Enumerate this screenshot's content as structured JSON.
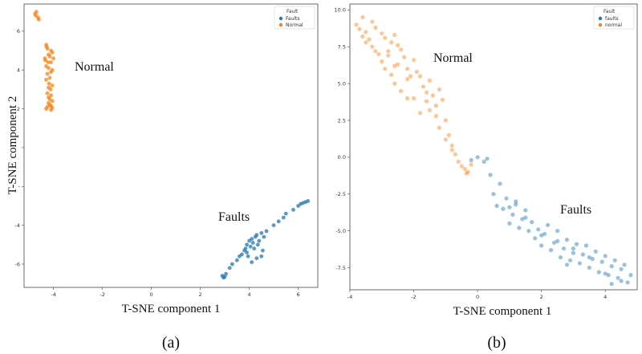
{
  "colors": {
    "faults": "#1f77b4",
    "normal": "#ff7f0e",
    "frame": "#444444"
  },
  "chart_data": [
    {
      "type": "scatter",
      "caption": "(a)",
      "xlabel": "T-SNE component 1",
      "ylabel": "T-SNE component 2",
      "xlim": [
        -5.2,
        6.8
      ],
      "ylim": [
        -7.2,
        7.4
      ],
      "xticks": [
        -4,
        -2,
        0,
        2,
        4,
        6
      ],
      "yticks": [
        -6,
        -4,
        -2,
        0,
        2,
        4,
        6
      ],
      "ytick_labels": [
        "-6",
        "-4",
        "-",
        "",
        "2",
        "4",
        "6"
      ],
      "legend": {
        "title": "Fault",
        "entries": [
          "Faults",
          "Normal"
        ],
        "location": "top-right"
      },
      "annotations": [
        {
          "text": "Normal",
          "x": -3.4,
          "y": 4.2
        },
        {
          "text": "Faults",
          "x": 1.7,
          "y": -3.5
        }
      ],
      "series": [
        {
          "name": "Normal",
          "x": [
            -4.75,
            -4.7,
            -4.72,
            -4.63,
            -4.6,
            -4.3,
            -4.28,
            -4.25,
            -4.1,
            -4.05,
            -4.2,
            -4.15,
            -4.0,
            -4.35,
            -4.33,
            -4.22,
            -4.1,
            -4.3,
            -4.2,
            -4.05,
            -4.1,
            -4.25,
            -4.15,
            -4.3,
            -4.18,
            -4.05,
            -4.2,
            -4.12,
            -4.25,
            -4.1,
            -4.2,
            -4.15,
            -4.05,
            -4.2,
            -4.15,
            -4.1,
            -4.25,
            -4.05,
            -4.3,
            -4.1
          ],
          "y": [
            6.9,
            7.0,
            6.8,
            6.7,
            6.6,
            5.3,
            5.2,
            5.1,
            5.0,
            4.9,
            4.8,
            4.7,
            4.6,
            4.6,
            4.5,
            4.4,
            4.4,
            4.2,
            4.1,
            4.0,
            3.9,
            3.8,
            3.6,
            3.5,
            3.3,
            3.2,
            3.1,
            3.0,
            2.8,
            2.7,
            2.6,
            2.5,
            2.4,
            2.3,
            2.2,
            2.15,
            2.1,
            2.05,
            2.0,
            1.95
          ]
        },
        {
          "name": "Faults",
          "x": [
            2.9,
            2.95,
            3.0,
            3.05,
            3.2,
            3.3,
            3.5,
            3.6,
            3.7,
            3.8,
            3.85,
            3.9,
            4.0,
            4.05,
            4.1,
            4.15,
            4.2,
            4.25,
            4.3,
            4.35,
            4.4,
            4.5,
            4.55,
            4.6,
            4.7,
            4.5,
            4.3,
            4.1,
            3.9,
            3.95,
            5.0,
            5.2,
            5.4,
            5.5,
            5.8,
            6.0,
            6.1,
            6.2,
            6.3,
            6.4
          ],
          "y": [
            -6.6,
            -6.7,
            -6.65,
            -6.5,
            -6.2,
            -6.0,
            -5.8,
            -5.6,
            -5.5,
            -5.3,
            -5.2,
            -5.0,
            -4.8,
            -5.1,
            -4.7,
            -4.9,
            -5.2,
            -4.6,
            -4.5,
            -5.0,
            -4.8,
            -4.4,
            -5.3,
            -4.6,
            -4.3,
            -5.6,
            -5.7,
            -5.9,
            -5.4,
            -5.6,
            -4.0,
            -3.8,
            -3.6,
            -3.4,
            -3.2,
            -3.0,
            -2.9,
            -2.85,
            -2.8,
            -2.75
          ]
        }
      ]
    },
    {
      "type": "scatter",
      "caption": "(b)",
      "xlabel": "T-SNE component 1",
      "ylabel": "",
      "xlim": [
        -4.0,
        5.0
      ],
      "ylim": [
        -9.0,
        10.4
      ],
      "xticks": [
        -4,
        -2,
        0,
        2,
        4
      ],
      "yticks": [
        -7.5,
        -5.0,
        -2.5,
        0.0,
        2.5,
        5.0,
        7.5,
        10.0
      ],
      "ytick_labels": [
        "-7.5",
        "-5.0",
        "-2.5",
        "0.0",
        "2.5",
        "5.0",
        "7.5",
        "10.0"
      ],
      "legend": {
        "title": "Fault",
        "entries": [
          "faults",
          "normal"
        ],
        "location": "top-right"
      },
      "annotations": [
        {
          "text": "Normal",
          "x": -1.5,
          "y": 6.3
        },
        {
          "text": "Faults",
          "x": 2.3,
          "y": -3.7
        }
      ],
      "series": [
        {
          "name": "normal",
          "x": [
            -3.8,
            -3.7,
            -3.6,
            -3.5,
            -3.4,
            -3.3,
            -3.2,
            -3.5,
            -3.3,
            -3.1,
            -3.0,
            -2.9,
            -2.8,
            -2.7,
            -2.6,
            -2.5,
            -3.0,
            -2.8,
            -2.6,
            -2.4,
            -2.3,
            -2.2,
            -2.1,
            -2.0,
            -1.9,
            -2.6,
            -2.4,
            -2.2,
            -2.0,
            -1.8,
            -1.7,
            -1.6,
            -1.5,
            -1.4,
            -1.3,
            -1.2,
            -1.5,
            -1.3,
            -1.1,
            -1.0,
            -0.9,
            -0.8,
            -1.2,
            -1.0,
            -0.8,
            -0.6,
            -0.5,
            -0.4,
            -0.3,
            -0.2,
            -3.6,
            -3.2,
            -2.9,
            -2.7,
            -2.5,
            -2.2,
            -1.8,
            -1.6,
            -0.7,
            -0.35
          ],
          "y": [
            9.0,
            8.7,
            9.5,
            8.5,
            8.0,
            9.2,
            8.8,
            7.8,
            7.5,
            7.0,
            8.4,
            8.1,
            7.2,
            7.8,
            8.3,
            7.6,
            6.5,
            6.9,
            6.2,
            7.3,
            6.8,
            6.0,
            5.5,
            6.6,
            5.8,
            5.0,
            4.5,
            5.3,
            4.0,
            5.5,
            4.8,
            3.8,
            5.2,
            4.2,
            3.5,
            4.6,
            3.2,
            2.8,
            3.9,
            2.5,
            1.5,
            0.8,
            2.0,
            1.2,
            0.5,
            -0.3,
            -0.6,
            -0.8,
            -1.0,
            -0.5,
            8.2,
            7.2,
            6.0,
            5.6,
            6.3,
            4.0,
            3.0,
            4.4,
            0.2,
            -1.1
          ]
        },
        {
          "name": "faults",
          "x": [
            -0.2,
            0.0,
            0.2,
            0.3,
            0.5,
            0.6,
            0.7,
            0.8,
            0.9,
            1.0,
            1.1,
            1.2,
            1.3,
            1.4,
            1.5,
            1.6,
            1.7,
            1.8,
            1.9,
            2.0,
            2.1,
            2.2,
            2.3,
            2.4,
            2.5,
            2.6,
            2.7,
            2.8,
            2.9,
            3.0,
            3.1,
            3.2,
            3.3,
            3.4,
            3.5,
            3.6,
            3.7,
            3.8,
            3.9,
            4.0,
            4.1,
            4.2,
            4.3,
            4.4,
            4.5,
            4.6,
            4.7,
            4.8,
            1.0,
            1.5,
            2.0,
            2.5,
            3.0,
            3.5,
            4.0,
            4.5,
            0.4,
            1.2,
            2.8,
            4.2
          ],
          "y": [
            -0.2,
            0.0,
            -0.3,
            -0.1,
            -2.5,
            -3.3,
            -1.8,
            -3.5,
            -2.8,
            -4.5,
            -3.9,
            -3.0,
            -4.8,
            -4.2,
            -3.6,
            -5.0,
            -4.4,
            -5.5,
            -4.9,
            -6.0,
            -5.2,
            -4.6,
            -6.3,
            -5.8,
            -5.0,
            -6.8,
            -6.2,
            -5.6,
            -7.0,
            -6.5,
            -5.9,
            -7.2,
            -6.6,
            -6.0,
            -7.5,
            -6.9,
            -6.4,
            -7.8,
            -7.1,
            -6.7,
            -8.0,
            -7.4,
            -7.0,
            -8.2,
            -7.6,
            -7.3,
            -8.5,
            -8.0,
            -3.4,
            -4.1,
            -5.3,
            -5.7,
            -6.2,
            -6.8,
            -7.9,
            -8.4,
            -1.2,
            -3.2,
            -7.3,
            -8.6
          ]
        }
      ]
    }
  ]
}
